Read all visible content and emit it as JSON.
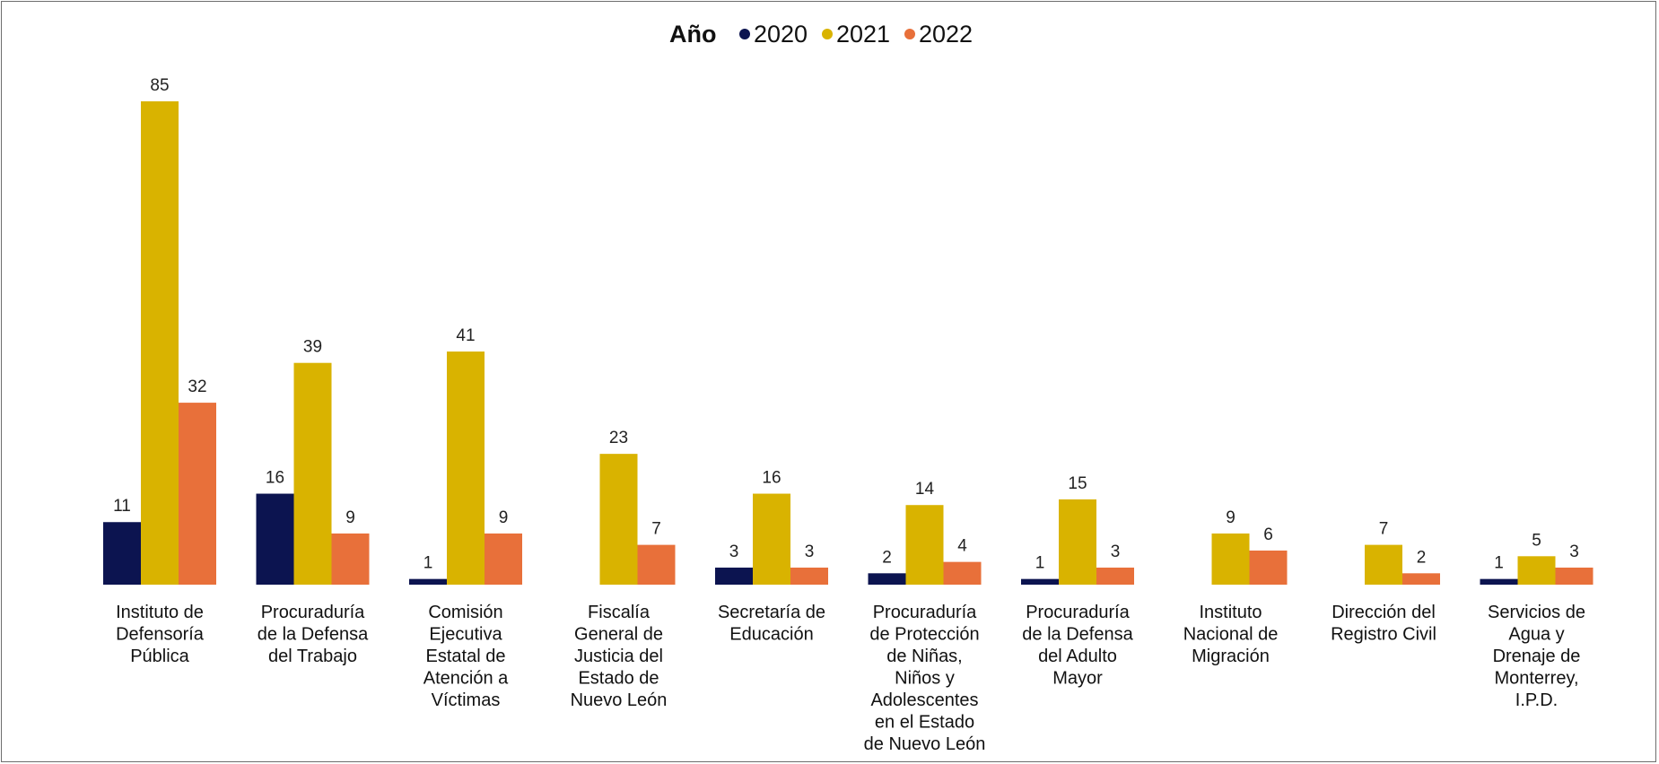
{
  "chart_data": {
    "type": "bar",
    "legend_title": "Año",
    "legend_position": "top-center",
    "grid": false,
    "categories": [
      [
        "Instituto de",
        "Defensoría",
        "Pública"
      ],
      [
        "Procuraduría",
        "de la Defensa",
        "del Trabajo"
      ],
      [
        "Comisión",
        "Ejecutiva",
        "Estatal de",
        "Atención a",
        "Víctimas"
      ],
      [
        "Fiscalía",
        "General de",
        "Justicia del",
        "Estado de",
        "Nuevo León"
      ],
      [
        "Secretaría de",
        "Educación"
      ],
      [
        "Procuraduría",
        "de Protección",
        "de Niñas,",
        "Niños y",
        "Adolescentes",
        "en el Estado",
        "de Nuevo León"
      ],
      [
        "Procuraduría",
        "de la Defensa",
        "del Adulto",
        "Mayor"
      ],
      [
        "Instituto",
        "Nacional de",
        "Migración"
      ],
      [
        "Dirección del",
        "Registro Civil"
      ],
      [
        "Servicios de",
        "Agua y",
        "Drenaje de",
        "Monterrey,",
        "I.P.D."
      ]
    ],
    "series": [
      {
        "name": "2020",
        "color": "#0c1450",
        "values": [
          11,
          16,
          1,
          null,
          3,
          2,
          1,
          null,
          null,
          1
        ]
      },
      {
        "name": "2021",
        "color": "#d9b300",
        "values": [
          85,
          39,
          41,
          23,
          16,
          14,
          15,
          9,
          7,
          5
        ]
      },
      {
        "name": "2022",
        "color": "#e8703a",
        "values": [
          32,
          9,
          9,
          7,
          3,
          4,
          3,
          6,
          2,
          3
        ]
      }
    ],
    "ylim": [
      0,
      85
    ]
  }
}
